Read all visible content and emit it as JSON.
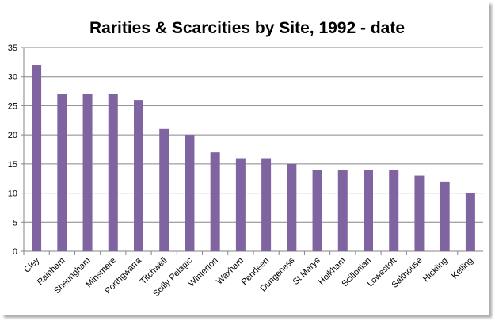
{
  "chart_data": {
    "type": "bar",
    "title": "Rarities & Scarcities by Site, 1992 - date",
    "xlabel": "",
    "ylabel": "",
    "ylim": [
      0,
      35
    ],
    "yticks": [
      0,
      5,
      10,
      15,
      20,
      25,
      30,
      35
    ],
    "grid": true,
    "legend": "none",
    "color": "#8064A2",
    "categories": [
      "Cley",
      "Rainham",
      "Sheringham",
      "Minsmere",
      "Porthgwarra",
      "Titchwell",
      "Scilly Pelagic",
      "Winterton",
      "Waxham",
      "Pendeen",
      "Dungeness",
      "St Marys",
      "Holkham",
      "Scillonian",
      "Lowestoft",
      "Salthouse",
      "Hickling",
      "Kelling"
    ],
    "values": [
      32,
      27,
      27,
      27,
      26,
      21,
      20,
      17,
      16,
      16,
      15,
      14,
      14,
      14,
      14,
      13,
      12,
      10
    ]
  }
}
